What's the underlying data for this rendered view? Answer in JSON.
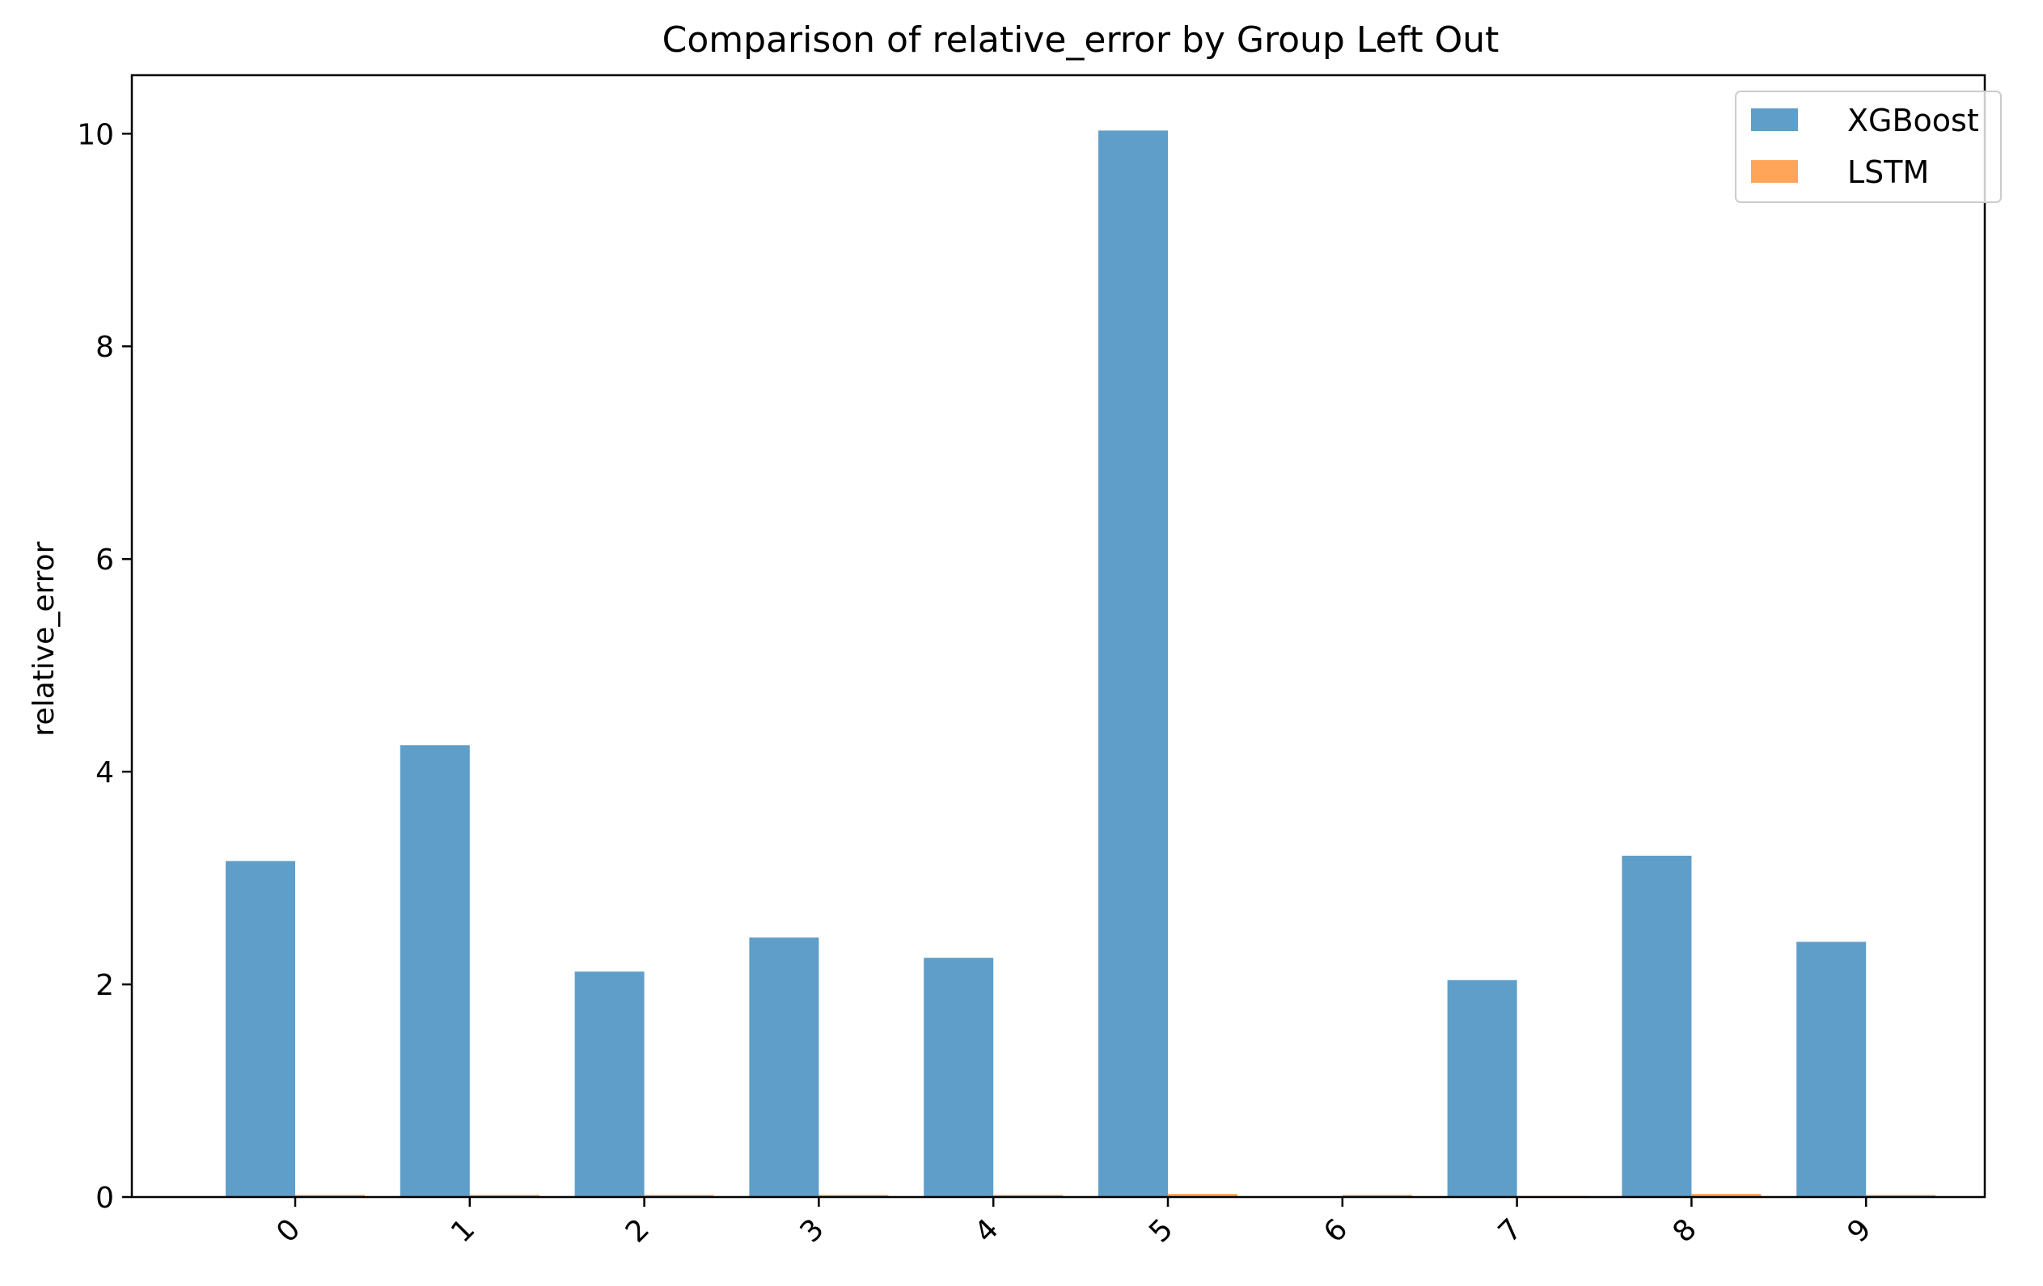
{
  "chart_data": {
    "type": "bar",
    "title": "Comparison of relative_error by Group Left Out",
    "xlabel": "",
    "ylabel": "relative_error",
    "categories": [
      "0",
      "1",
      "2",
      "3",
      "4",
      "5",
      "6",
      "7",
      "8",
      "9"
    ],
    "series": [
      {
        "name": "XGBoost",
        "color": "#5f9ec9",
        "values": [
          3.16,
          4.25,
          2.12,
          2.44,
          2.25,
          10.03,
          0.0,
          2.04,
          3.21,
          2.4
        ]
      },
      {
        "name": "LSTM",
        "color": "#ffa55a",
        "values": [
          0.02,
          0.02,
          0.02,
          0.02,
          0.02,
          0.03,
          0.02,
          0.01,
          0.03,
          0.02
        ]
      }
    ],
    "ylim": [
      0,
      10.55
    ],
    "yticks": [
      0,
      2,
      4,
      6,
      8,
      10
    ],
    "grid": false,
    "legend_position": "top-right"
  }
}
